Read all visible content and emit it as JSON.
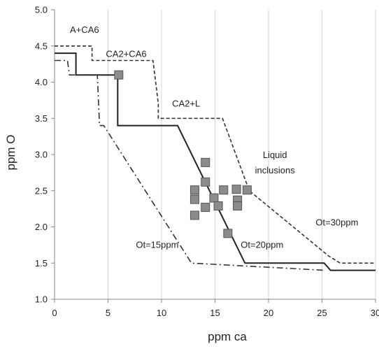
{
  "chart_data": {
    "type": "line",
    "xlabel": "ppm ca",
    "ylabel": "ppm O",
    "xlim": [
      0,
      30
    ],
    "ylim": [
      1.0,
      5.0
    ],
    "x_ticks": [
      0,
      5,
      10,
      15,
      20,
      25,
      30
    ],
    "y_ticks": [
      1.0,
      1.5,
      2.0,
      2.5,
      3.0,
      3.5,
      4.0,
      4.5,
      5.0
    ],
    "x_tick_labels": [
      "0",
      "5",
      "10",
      "15",
      "20",
      "25",
      "30"
    ],
    "y_tick_labels": [
      "1.0",
      "1.5",
      "2.0",
      "2.5",
      "3.0",
      "3.5",
      "4.0",
      "4.5",
      "5.0"
    ],
    "grid": "vertical",
    "series": [
      {
        "name": "Ot=30ppm",
        "style": "dashed",
        "color": "#333333",
        "x": [
          0,
          3.5,
          3.5,
          9.2,
          9.7,
          9.7,
          15.7,
          18.2,
          25.6,
          26.7,
          30
        ],
        "y": [
          4.5,
          4.5,
          4.3,
          4.3,
          3.7,
          3.5,
          3.5,
          2.5,
          1.6,
          1.5,
          1.5
        ]
      },
      {
        "name": "Ot=20ppm",
        "style": "solid",
        "color": "#222222",
        "x": [
          0,
          2.0,
          2.0,
          5.6,
          5.9,
          5.9,
          11.5,
          17.8,
          25.2,
          25.8,
          30
        ],
        "y": [
          4.4,
          4.4,
          4.1,
          4.1,
          4.1,
          3.4,
          3.4,
          1.5,
          1.5,
          1.4,
          1.4
        ]
      },
      {
        "name": "Ot=15ppm",
        "style": "dashdot",
        "color": "#333333",
        "x": [
          0,
          1.2,
          1.4,
          4.0,
          4.2,
          4.6,
          12.8,
          25.3
        ],
        "y": [
          4.3,
          4.3,
          4.1,
          4.1,
          3.4,
          3.4,
          1.5,
          1.4
        ]
      }
    ],
    "scatter": {
      "x": [
        6.0,
        13.1,
        13.1,
        13.1,
        14.1,
        14.1,
        14.1,
        14.9,
        15.3,
        15.8,
        16.2,
        17.0,
        17.1,
        17.1,
        18.0
      ],
      "y": [
        4.1,
        2.51,
        2.38,
        2.16,
        2.89,
        2.62,
        2.27,
        2.4,
        2.29,
        2.51,
        1.91,
        2.52,
        2.37,
        2.29,
        2.51
      ]
    },
    "annotations": [
      {
        "text": "A+CA6",
        "x": 2.8,
        "y": 4.68
      },
      {
        "text": "CA2+CA6",
        "x": 6.7,
        "y": 4.35
      },
      {
        "text": "CA2+L",
        "x": 12.3,
        "y": 3.66
      },
      {
        "text": "Liquid",
        "x": 20.6,
        "y": 2.95
      },
      {
        "text": "inclusions",
        "x": 20.6,
        "y": 2.74
      },
      {
        "text": "Ot=30ppm",
        "x": 26.4,
        "y": 2.02
      },
      {
        "text": "Ot=20ppm",
        "x": 19.4,
        "y": 1.71
      },
      {
        "text": "Ot=15ppm",
        "x": 9.6,
        "y": 1.71
      }
    ]
  }
}
